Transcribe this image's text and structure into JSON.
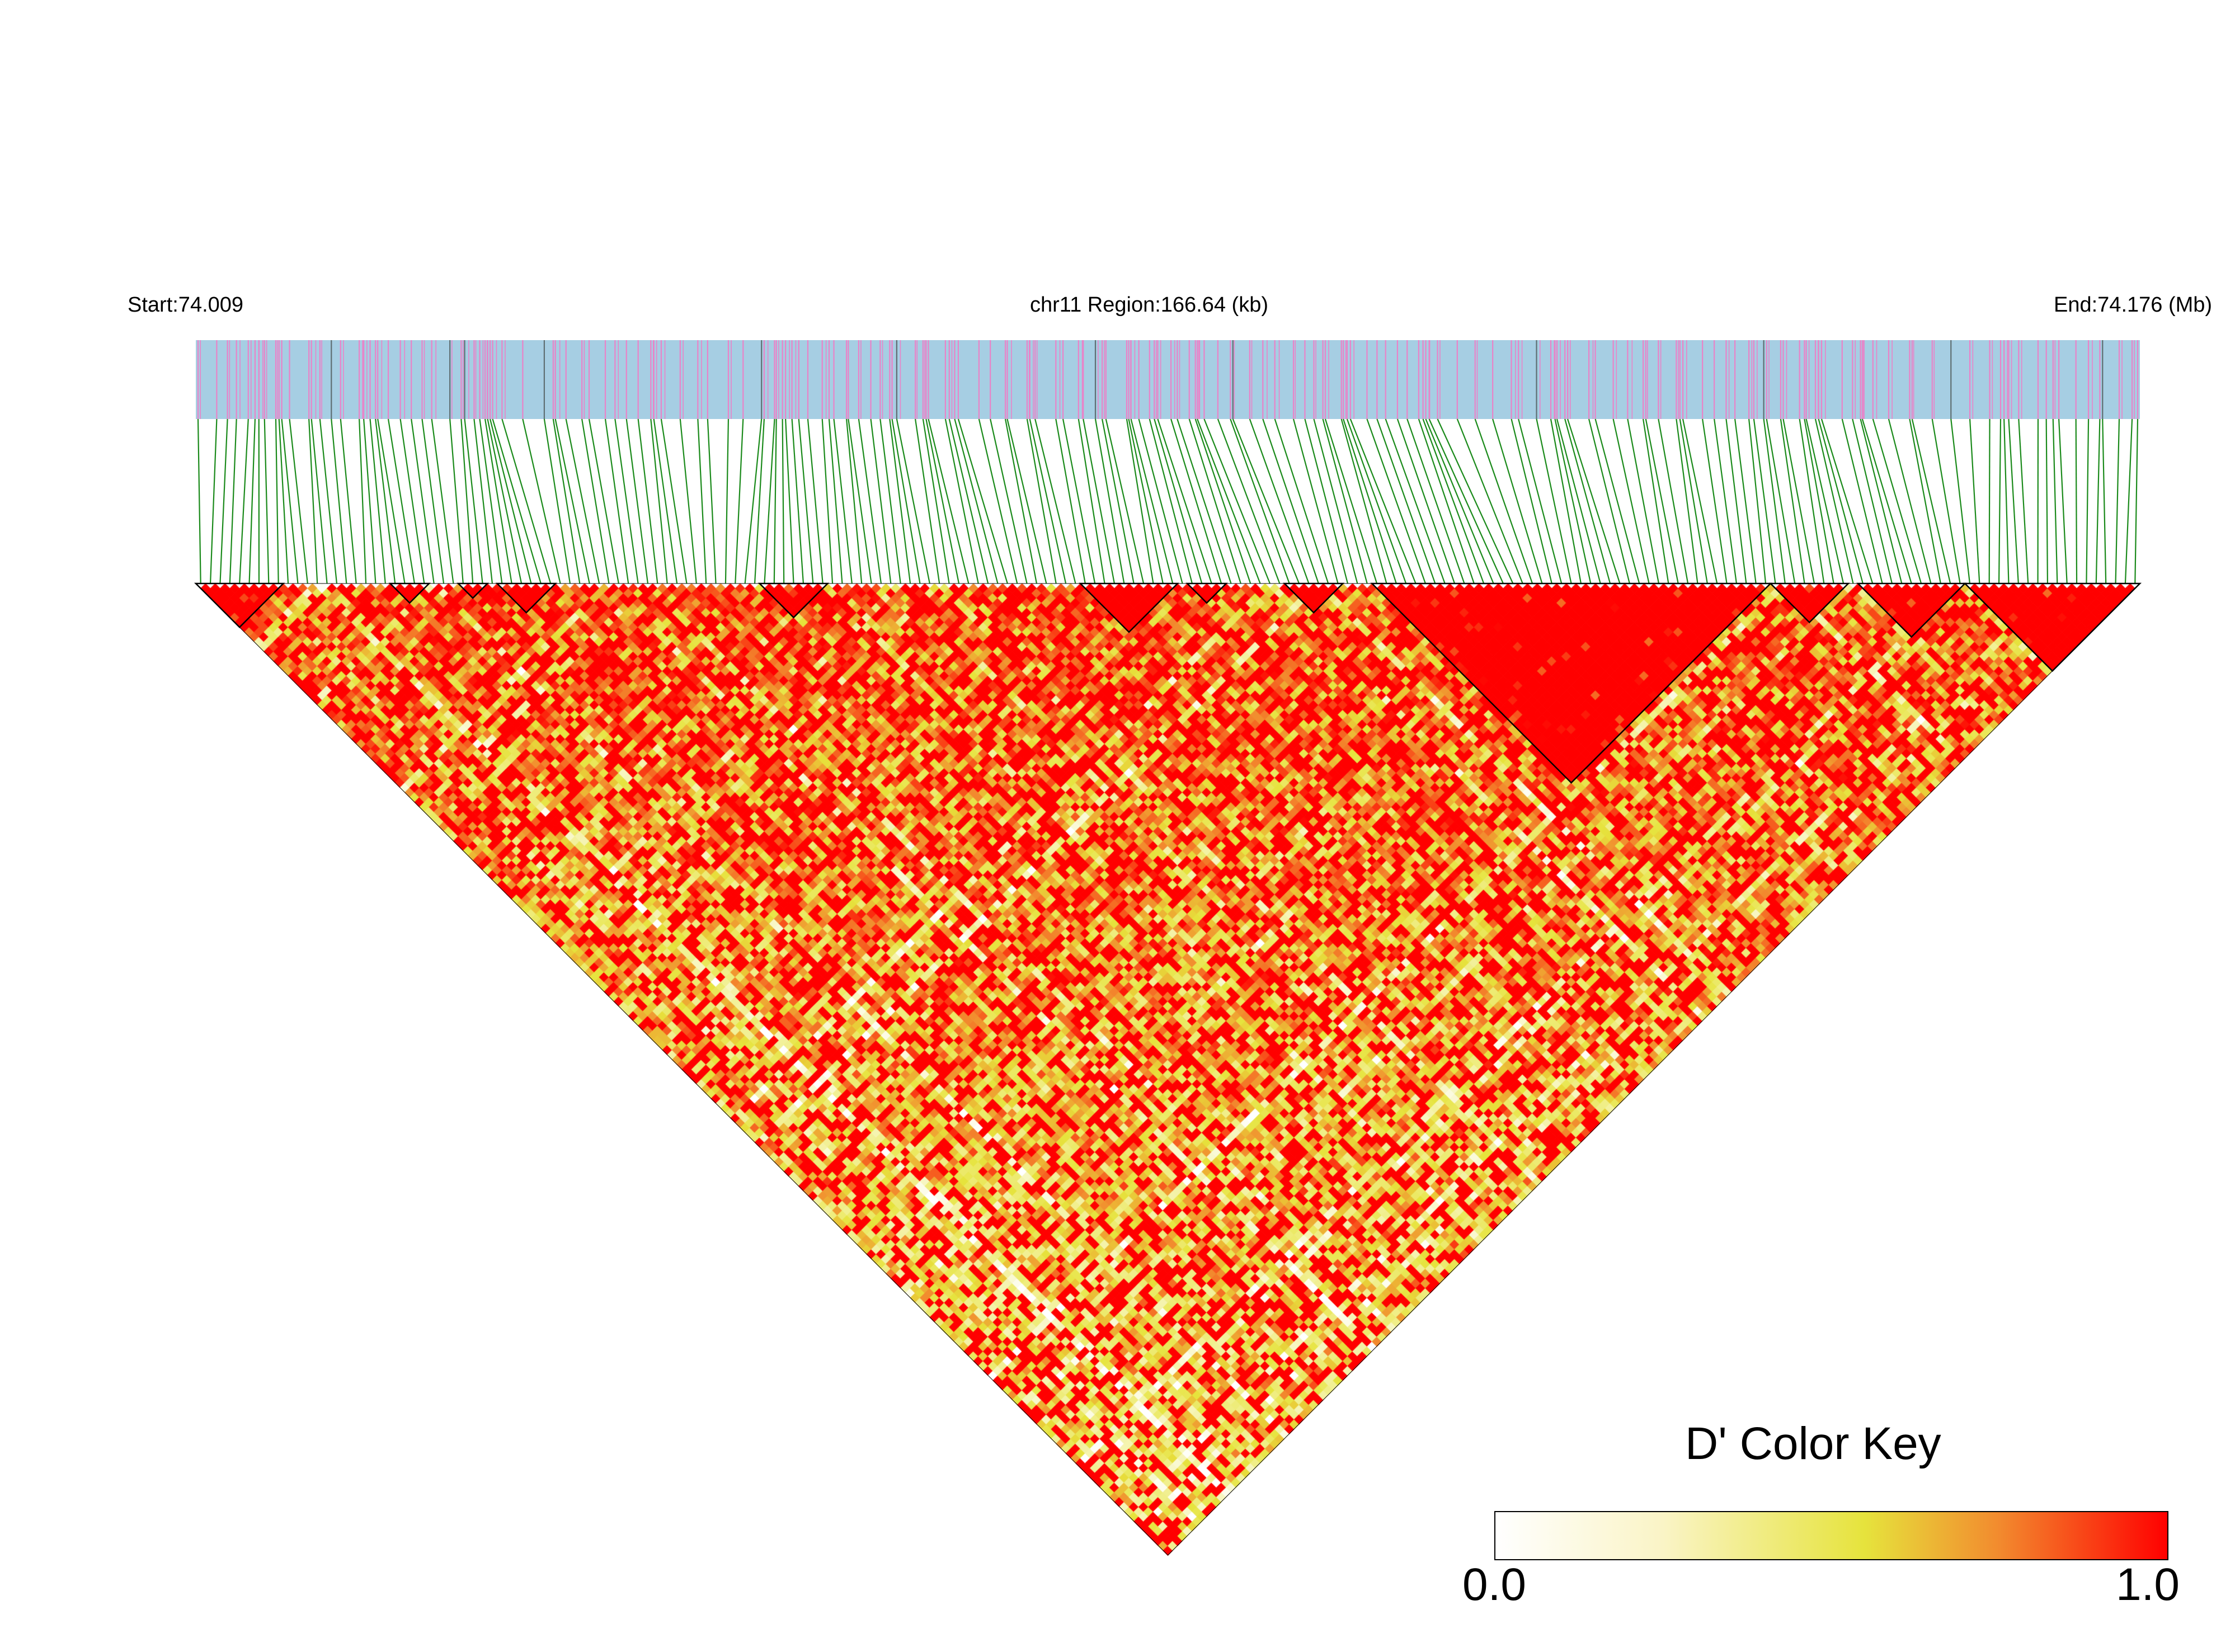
{
  "header": {
    "start_label": "Start:74.009",
    "region_label": "chr11 Region:166.64 (kb)",
    "end_label": "End:74.176 (Mb)"
  },
  "legend": {
    "title": "D' Color Key",
    "min_label": "0.0",
    "max_label": "1.0"
  },
  "colors": {
    "snp_bar_background": "#a6cee3",
    "snp_tick_pink": "#e983c8",
    "snp_tick_dark": "#5f6f73",
    "connector_lines": "#1a8a1a",
    "ld_high": "#ff0000",
    "ld_mid": "#e6e33c",
    "ld_low": "#ffffff",
    "block_outline": "#000000"
  },
  "chart_data": {
    "type": "heatmap",
    "description_type": "linkage disequilibrium triangle heatmap",
    "chromosome": "chr11",
    "start_mb": 74.009,
    "end_mb": 74.176,
    "region_kb": 166.64,
    "metric": "D'",
    "value_range": [
      0.0,
      1.0
    ],
    "approx_snp_count": 200,
    "color_scale": [
      {
        "value": 0.0,
        "color": "#ffffff"
      },
      {
        "value": 0.55,
        "color": "#e6e33c"
      },
      {
        "value": 0.75,
        "color": "#f28a2e"
      },
      {
        "value": 1.0,
        "color": "#ff0000"
      }
    ],
    "haplotype_blocks": [
      {
        "first_snp": 0,
        "last_snp": 8
      },
      {
        "first_snp": 20,
        "last_snp": 23
      },
      {
        "first_snp": 27,
        "last_snp": 29
      },
      {
        "first_snp": 31,
        "last_snp": 36
      },
      {
        "first_snp": 58,
        "last_snp": 64
      },
      {
        "first_snp": 91,
        "last_snp": 100
      },
      {
        "first_snp": 102,
        "last_snp": 105
      },
      {
        "first_snp": 112,
        "last_snp": 117
      },
      {
        "first_snp": 121,
        "last_snp": 161
      },
      {
        "first_snp": 162,
        "last_snp": 169
      },
      {
        "first_snp": 171,
        "last_snp": 181
      },
      {
        "first_snp": 182,
        "last_snp": 199
      }
    ]
  }
}
